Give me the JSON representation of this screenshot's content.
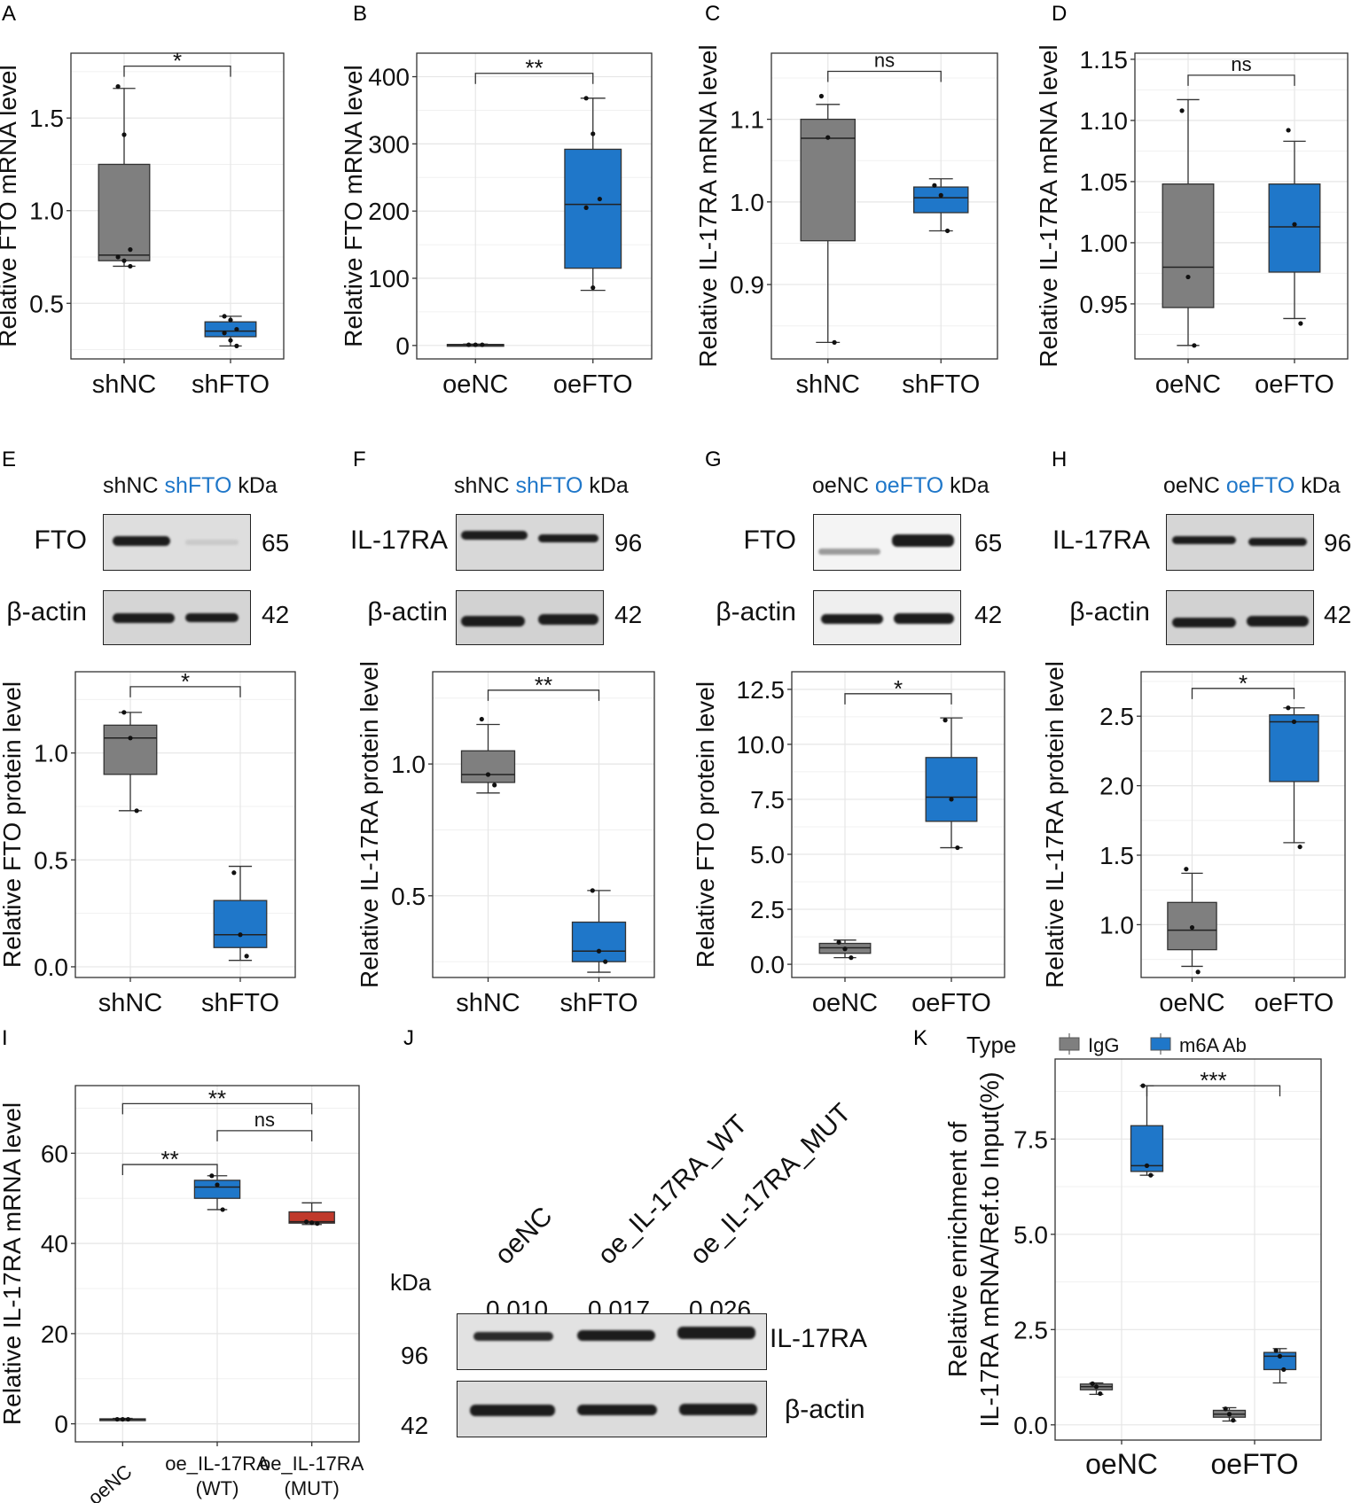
{
  "chart_data": [
    {
      "panel": "A",
      "type": "boxplot",
      "ylabel": "Relative FTO mRNA level",
      "categories": [
        "shNC",
        "shFTO"
      ],
      "yticks": [
        0.5,
        1.0,
        1.5
      ],
      "ytick_labels": [
        "0.5",
        "1.0",
        "1.5"
      ],
      "ylim": [
        0.2,
        1.85
      ],
      "boxes": [
        {
          "q1": 0.73,
          "median": 0.76,
          "q3": 1.25,
          "whislo": 0.7,
          "whishi": 1.66
        },
        {
          "q1": 0.32,
          "median": 0.35,
          "q3": 0.4,
          "whislo": 0.27,
          "whishi": 0.43
        }
      ],
      "points": [
        [
          1.67,
          1.41,
          0.79,
          0.75,
          0.73,
          0.7
        ],
        [
          0.43,
          0.41,
          0.36,
          0.34,
          0.3,
          0.27
        ]
      ],
      "fills": [
        "#7f7f7f",
        "#1f77c9"
      ],
      "comparisons": [
        {
          "from": 0,
          "to": 1,
          "label": "*",
          "y": 1.78
        }
      ]
    },
    {
      "panel": "B",
      "type": "boxplot",
      "ylabel": "Relative FTO mRNA level",
      "categories": [
        "oeNC",
        "oeFTO"
      ],
      "yticks": [
        0,
        100,
        200,
        300,
        400
      ],
      "ytick_labels": [
        "0",
        "100",
        "200",
        "300",
        "400"
      ],
      "ylim": [
        -20,
        435
      ],
      "boxes": [
        {
          "q1": 1,
          "median": 1,
          "q3": 1.5,
          "whislo": 0.5,
          "whishi": 2
        },
        {
          "q1": 115,
          "median": 210,
          "q3": 292,
          "whislo": 82,
          "whishi": 368
        }
      ],
      "points": [
        [
          1,
          1,
          1
        ],
        [
          368,
          315,
          218,
          205,
          86
        ]
      ],
      "fills": [
        "#7f7f7f",
        "#1f77c9"
      ],
      "comparisons": [
        {
          "from": 0,
          "to": 1,
          "label": "**",
          "y": 405
        }
      ]
    },
    {
      "panel": "C",
      "type": "boxplot",
      "ylabel": "Relative IL-17RA mRNA level",
      "categories": [
        "shNC",
        "shFTO"
      ],
      "yticks": [
        0.9,
        1.0,
        1.1
      ],
      "ytick_labels": [
        "0.9",
        "1.0",
        "1.1"
      ],
      "ylim": [
        0.81,
        1.18
      ],
      "boxes": [
        {
          "q1": 0.953,
          "median": 1.077,
          "q3": 1.1,
          "whislo": 0.83,
          "whishi": 1.118
        },
        {
          "q1": 0.987,
          "median": 1.005,
          "q3": 1.018,
          "whislo": 0.965,
          "whishi": 1.028
        }
      ],
      "points": [
        [
          1.128,
          1.078,
          0.83
        ],
        [
          1.02,
          1.008,
          0.965
        ]
      ],
      "fills": [
        "#7f7f7f",
        "#1f77c9"
      ],
      "comparisons": [
        {
          "from": 0,
          "to": 1,
          "label": "ns",
          "y": 1.158
        }
      ]
    },
    {
      "panel": "D",
      "type": "boxplot",
      "ylabel": "Relative IL-17RA mRNA level",
      "categories": [
        "oeNC",
        "oeFTO"
      ],
      "yticks": [
        0.95,
        1.0,
        1.05,
        1.1,
        1.15
      ],
      "ytick_labels": [
        "0.95",
        "1.00",
        "1.05",
        "1.10",
        "1.15"
      ],
      "ylim": [
        0.905,
        1.155
      ],
      "boxes": [
        {
          "q1": 0.947,
          "median": 0.98,
          "q3": 1.048,
          "whislo": 0.916,
          "whishi": 1.117
        },
        {
          "q1": 0.976,
          "median": 1.013,
          "q3": 1.048,
          "whislo": 0.938,
          "whishi": 1.083
        }
      ],
      "points": [
        [
          1.108,
          0.972,
          0.916
        ],
        [
          1.092,
          1.015,
          0.934
        ]
      ],
      "fills": [
        "#7f7f7f",
        "#1f77c9"
      ],
      "comparisons": [
        {
          "from": 0,
          "to": 1,
          "label": "ns",
          "y": 1.137
        }
      ]
    },
    {
      "panel": "E",
      "type": "boxplot",
      "ylabel": "Relative FTO protein level",
      "categories": [
        "shNC",
        "shFTO"
      ],
      "yticks": [
        0.0,
        0.5,
        1.0
      ],
      "ytick_labels": [
        "0.0",
        "0.5",
        "1.0"
      ],
      "ylim": [
        -0.05,
        1.38
      ],
      "boxes": [
        {
          "q1": 0.9,
          "median": 1.07,
          "q3": 1.13,
          "whislo": 0.73,
          "whishi": 1.19
        },
        {
          "q1": 0.09,
          "median": 0.15,
          "q3": 0.31,
          "whislo": 0.03,
          "whishi": 0.47
        }
      ],
      "points": [
        [
          1.19,
          1.07,
          0.73
        ],
        [
          0.44,
          0.15,
          0.05
        ]
      ],
      "fills": [
        "#7f7f7f",
        "#1f77c9"
      ],
      "comparisons": [
        {
          "from": 0,
          "to": 1,
          "label": "*",
          "y": 1.31
        }
      ]
    },
    {
      "panel": "F",
      "type": "boxplot",
      "ylabel": "Relative IL-17RA protein level",
      "categories": [
        "shNC",
        "shFTO"
      ],
      "yticks": [
        0.5,
        1.0
      ],
      "ytick_labels": [
        "0.5",
        "1.0"
      ],
      "ylim": [
        0.19,
        1.35
      ],
      "boxes": [
        {
          "q1": 0.93,
          "median": 0.96,
          "q3": 1.05,
          "whislo": 0.89,
          "whishi": 1.15
        },
        {
          "q1": 0.25,
          "median": 0.29,
          "q3": 0.4,
          "whislo": 0.21,
          "whishi": 0.52
        }
      ],
      "points": [
        [
          1.17,
          0.96,
          0.92
        ],
        [
          0.52,
          0.29,
          0.25
        ]
      ],
      "fills": [
        "#7f7f7f",
        "#1f77c9"
      ],
      "comparisons": [
        {
          "from": 0,
          "to": 1,
          "label": "**",
          "y": 1.28
        }
      ]
    },
    {
      "panel": "G",
      "type": "boxplot",
      "ylabel": "Relative FTO protein level",
      "categories": [
        "oeNC",
        "oeFTO"
      ],
      "yticks": [
        0.0,
        2.5,
        5.0,
        7.5,
        10.0,
        12.5
      ],
      "ytick_labels": [
        "0.0",
        "2.5",
        "5.0",
        "7.5",
        "10.0",
        "12.5"
      ],
      "ylim": [
        -0.6,
        13.3
      ],
      "boxes": [
        {
          "q1": 0.5,
          "median": 0.75,
          "q3": 0.95,
          "whislo": 0.3,
          "whishi": 1.1
        },
        {
          "q1": 6.5,
          "median": 7.6,
          "q3": 9.4,
          "whislo": 5.3,
          "whishi": 11.2
        }
      ],
      "points": [
        [
          1.0,
          0.7,
          0.3
        ],
        [
          11.1,
          7.5,
          5.3
        ]
      ],
      "fills": [
        "#7f7f7f",
        "#1f77c9"
      ],
      "comparisons": [
        {
          "from": 0,
          "to": 1,
          "label": "*",
          "y": 12.3
        }
      ]
    },
    {
      "panel": "H",
      "type": "boxplot",
      "ylabel": "Relative IL-17RA protein level",
      "categories": [
        "oeNC",
        "oeFTO"
      ],
      "yticks": [
        1.0,
        1.5,
        2.0,
        2.5
      ],
      "ytick_labels": [
        "1.0",
        "1.5",
        "2.0",
        "2.5"
      ],
      "ylim": [
        0.62,
        2.82
      ],
      "boxes": [
        {
          "q1": 0.82,
          "median": 0.96,
          "q3": 1.16,
          "whislo": 0.7,
          "whishi": 1.37
        },
        {
          "q1": 2.03,
          "median": 2.46,
          "q3": 2.51,
          "whislo": 1.59,
          "whishi": 2.56
        }
      ],
      "points": [
        [
          1.4,
          0.98,
          0.66
        ],
        [
          2.56,
          2.46,
          1.56
        ]
      ],
      "fills": [
        "#7f7f7f",
        "#1f77c9"
      ],
      "comparisons": [
        {
          "from": 0,
          "to": 1,
          "label": "*",
          "y": 2.7
        }
      ]
    },
    {
      "panel": "I",
      "type": "boxplot",
      "ylabel": "Relative IL-17RA mRNA level",
      "categories": [
        "oeNC",
        "oe_IL-17RA\n(WT)",
        "oe_IL-17RA\n(MUT)"
      ],
      "yticks": [
        0,
        20,
        40,
        60
      ],
      "ytick_labels": [
        "0",
        "20",
        "40",
        "60"
      ],
      "ylim": [
        -4,
        75
      ],
      "boxes": [
        {
          "q1": 0.9,
          "median": 1.0,
          "q3": 1.1,
          "whislo": 0.8,
          "whishi": 1.2
        },
        {
          "q1": 50,
          "median": 52.5,
          "q3": 54,
          "whislo": 47.5,
          "whishi": 55
        },
        {
          "q1": 44.5,
          "median": 44.8,
          "q3": 47,
          "whislo": 44.2,
          "whishi": 49
        }
      ],
      "points": [
        [
          1.0,
          1.0,
          1.0
        ],
        [
          55,
          53,
          47.5
        ],
        [
          44.8,
          44.6,
          44.4
        ]
      ],
      "fills": [
        "#7f7f7f",
        "#1f77c9",
        "#c0392b"
      ],
      "comparisons": [
        {
          "from": 0,
          "to": 1,
          "label": "**",
          "y": 57.5
        },
        {
          "from": 1,
          "to": 2,
          "label": "ns",
          "y": 65
        },
        {
          "from": 0,
          "to": 2,
          "label": "**",
          "y": 71
        }
      ]
    },
    {
      "panel": "K",
      "type": "boxplot",
      "ylabel": "Relative enrichment of IL-17RA mRNA/Ref.to Input(%)",
      "categories": [
        "oeNC",
        "oeFTO"
      ],
      "legend_title": "Type",
      "legend": [
        "IgG",
        "m6A Ab"
      ],
      "yticks": [
        0.0,
        2.5,
        5.0,
        7.5
      ],
      "ytick_labels": [
        "0.0",
        "2.5",
        "5.0",
        "7.5"
      ],
      "ylim": [
        -0.4,
        9.6
      ],
      "groups": [
        {
          "name": "IgG",
          "fill": "#7f7f7f",
          "boxes": [
            {
              "q1": 0.92,
              "median": 1.0,
              "q3": 1.07,
              "whislo": 0.8,
              "whishi": 1.1
            },
            {
              "q1": 0.2,
              "median": 0.28,
              "q3": 0.38,
              "whislo": 0.1,
              "whishi": 0.45
            }
          ],
          "points": [
            [
              1.08,
              1.0,
              0.82
            ],
            [
              0.42,
              0.28,
              0.12
            ]
          ]
        },
        {
          "name": "m6A Ab",
          "fill": "#1f77c9",
          "boxes": [
            {
              "q1": 6.65,
              "median": 6.8,
              "q3": 7.85,
              "whislo": 6.55,
              "whishi": 8.9
            },
            {
              "q1": 1.45,
              "median": 1.8,
              "q3": 1.9,
              "whislo": 1.1,
              "whishi": 2.0
            }
          ],
          "points": [
            [
              8.9,
              6.8,
              6.55
            ],
            [
              1.95,
              1.8,
              1.45
            ]
          ]
        }
      ],
      "comparisons": [
        {
          "label": "***",
          "y": 8.9
        }
      ]
    }
  ],
  "panel_letters": [
    "A",
    "B",
    "C",
    "D",
    "E",
    "F",
    "G",
    "H",
    "I",
    "J",
    "K"
  ],
  "blots": {
    "E": {
      "lanes": [
        "shNC",
        "shFTO"
      ],
      "targets": [
        {
          "name": "FTO",
          "kda": "65"
        },
        {
          "name": "β-actin",
          "kda": "42"
        }
      ]
    },
    "F": {
      "lanes": [
        "shNC",
        "shFTO"
      ],
      "targets": [
        {
          "name": "IL-17RA",
          "kda": "96"
        },
        {
          "name": "β-actin",
          "kda": "42"
        }
      ]
    },
    "G": {
      "lanes": [
        "oeNC",
        "oeFTO"
      ],
      "targets": [
        {
          "name": "FTO",
          "kda": "65"
        },
        {
          "name": "β-actin",
          "kda": "42"
        }
      ]
    },
    "H": {
      "lanes": [
        "oeNC",
        "oeFTO"
      ],
      "targets": [
        {
          "name": "IL-17RA",
          "kda": "96"
        },
        {
          "name": "β-actin",
          "kda": "42"
        }
      ]
    },
    "kda_label": "kDa",
    "J": {
      "lanes": [
        "oeNC",
        "oe_IL-17RA_WT",
        "oe_IL-17RA_MUT"
      ],
      "values": [
        "0.010",
        "0.017",
        "0.026"
      ],
      "targets": [
        {
          "name": "IL-17RA",
          "kda": "96"
        },
        {
          "name": "β-actin",
          "kda": "42"
        }
      ]
    }
  }
}
